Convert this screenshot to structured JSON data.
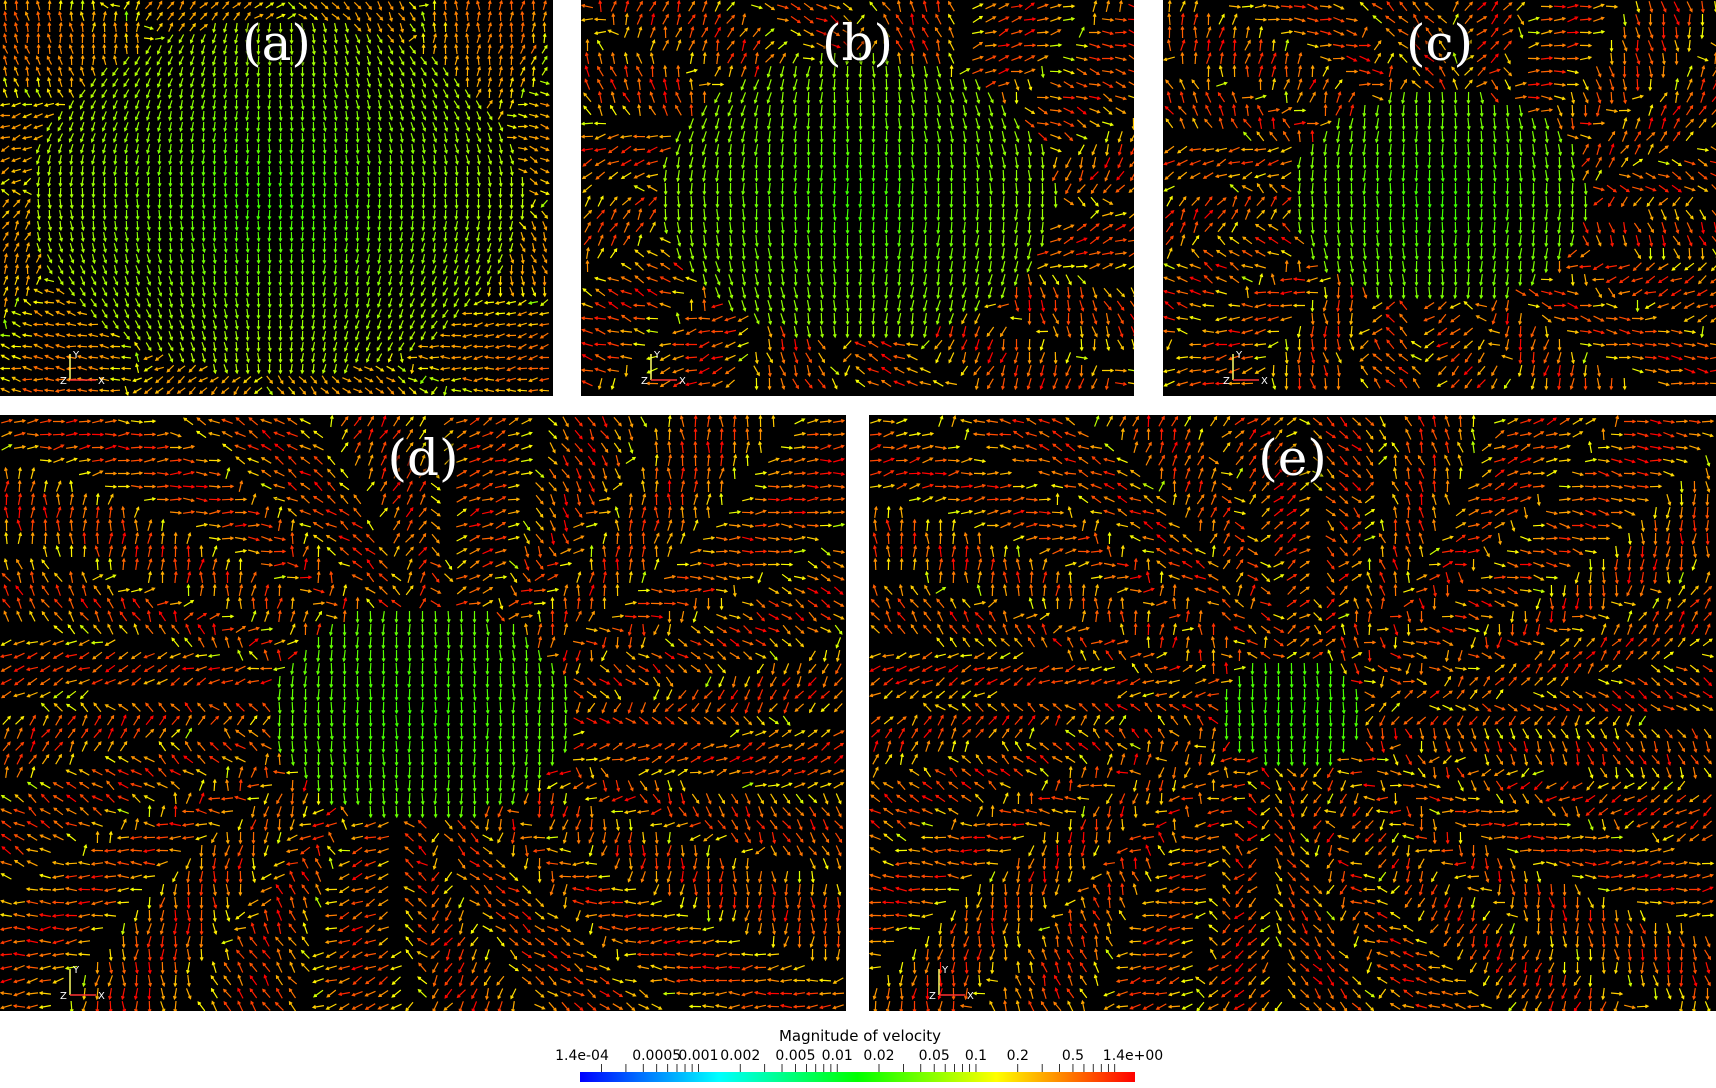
{
  "panels": [
    {
      "id": "a",
      "label": "(a)",
      "stage": 0
    },
    {
      "id": "b",
      "label": "(b)",
      "stage": 1
    },
    {
      "id": "c",
      "label": "(c)",
      "stage": 2
    },
    {
      "id": "d",
      "label": "(d)",
      "stage": 3
    },
    {
      "id": "e",
      "label": "(e)",
      "stage": 4
    }
  ],
  "axes_labels": {
    "y": "Y",
    "z": "Z",
    "x": "X"
  },
  "colorbar": {
    "title": "Magnitude of velocity",
    "scale": "log",
    "range": [
      0.00014,
      1.4
    ],
    "tick_labels": [
      "1.4e-04",
      "0.0005",
      "0.001",
      "0.002",
      "0.005",
      "0.01",
      "0.02",
      "0.05",
      "0.1",
      "0.2",
      "0.5",
      "1.4e+00"
    ],
    "tick_values": [
      0.00014,
      0.0005,
      0.001,
      0.002,
      0.005,
      0.01,
      0.02,
      0.05,
      0.1,
      0.2,
      0.5,
      1.4
    ],
    "colormap": [
      "#0000ff",
      "#00ffff",
      "#00ff00",
      "#ffff00",
      "#ff0000"
    ]
  }
}
